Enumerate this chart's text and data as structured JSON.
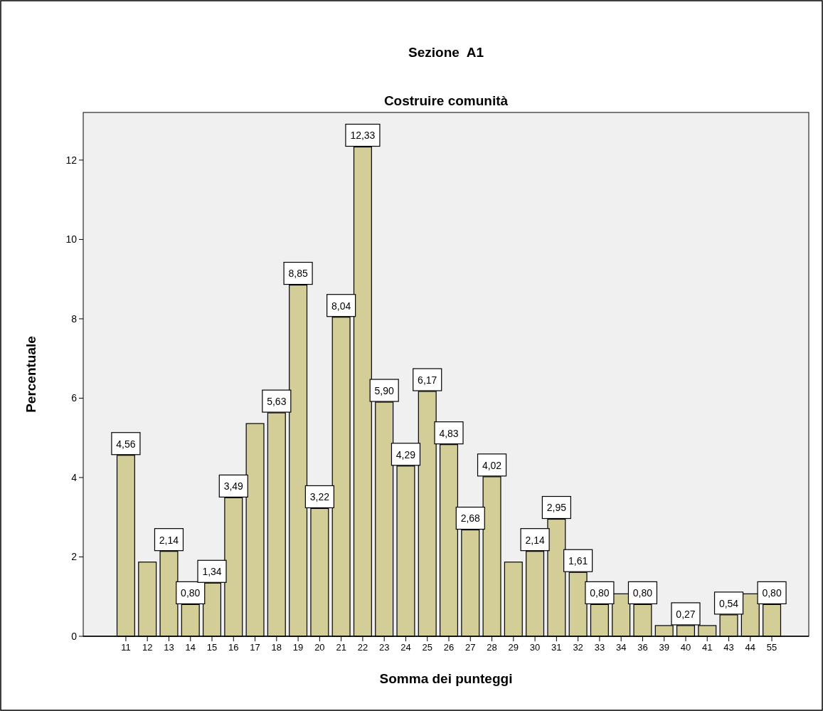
{
  "chart_data": {
    "type": "bar",
    "title": "Sezione  A1",
    "subtitle": "Costruire comunità",
    "xlabel": "Somma dei punteggi",
    "ylabel": "Percentuale",
    "categories": [
      "11",
      "12",
      "13",
      "14",
      "15",
      "16",
      "17",
      "18",
      "19",
      "20",
      "21",
      "22",
      "23",
      "24",
      "25",
      "26",
      "27",
      "28",
      "29",
      "30",
      "31",
      "32",
      "33",
      "34",
      "36",
      "39",
      "40",
      "41",
      "43",
      "44",
      "55"
    ],
    "values": [
      4.56,
      1.87,
      2.14,
      0.8,
      1.34,
      3.49,
      5.36,
      5.63,
      8.85,
      3.22,
      8.04,
      12.33,
      5.9,
      4.29,
      6.17,
      4.83,
      2.68,
      4.02,
      1.87,
      2.14,
      2.95,
      1.61,
      0.8,
      1.07,
      0.8,
      0.27,
      0.27,
      0.27,
      0.54,
      1.07,
      0.8
    ],
    "value_labels": [
      "4,56",
      null,
      "2,14",
      "0,80",
      "1,34",
      "3,49",
      null,
      "5,63",
      "8,85",
      "3,22",
      "8,04",
      "12,33",
      "5,90",
      "4,29",
      "6,17",
      "4,83",
      "2,68",
      "4,02",
      null,
      "2,14",
      "2,95",
      "1,61",
      "0,80",
      null,
      "0,80",
      null,
      "0,27",
      null,
      "0,54",
      null,
      "0,80"
    ],
    "color": "#d3ce97",
    "ylim": [
      0,
      13.2
    ],
    "yticks": [
      0,
      2,
      4,
      6,
      8,
      10,
      12
    ],
    "grid": false
  }
}
